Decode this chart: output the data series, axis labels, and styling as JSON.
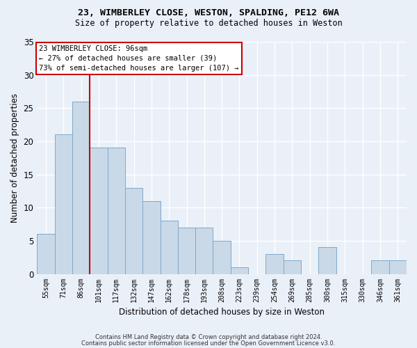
{
  "title1": "23, WIMBERLEY CLOSE, WESTON, SPALDING, PE12 6WA",
  "title2": "Size of property relative to detached houses in Weston",
  "xlabel": "Distribution of detached houses by size in Weston",
  "ylabel": "Number of detached properties",
  "footer1": "Contains HM Land Registry data © Crown copyright and database right 2024.",
  "footer2": "Contains public sector information licensed under the Open Government Licence v3.0.",
  "categories": [
    "55sqm",
    "71sqm",
    "86sqm",
    "101sqm",
    "117sqm",
    "132sqm",
    "147sqm",
    "162sqm",
    "178sqm",
    "193sqm",
    "208sqm",
    "223sqm",
    "239sqm",
    "254sqm",
    "269sqm",
    "285sqm",
    "300sqm",
    "315sqm",
    "330sqm",
    "346sqm",
    "361sqm"
  ],
  "values": [
    6,
    21,
    26,
    19,
    19,
    13,
    11,
    8,
    7,
    7,
    5,
    1,
    0,
    3,
    2,
    0,
    4,
    0,
    0,
    2,
    2
  ],
  "bar_color": "#c9d9e8",
  "bar_edge_color": "#7fa8c9",
  "background_color": "#eaf0f8",
  "grid_color": "#ffffff",
  "annotation_label": "23 WIMBERLEY CLOSE: 96sqm",
  "annotation_line1": "← 27% of detached houses are smaller (39)",
  "annotation_line2": "73% of semi-detached houses are larger (107) →",
  "annotation_box_color": "#ffffff",
  "annotation_box_edge": "#cc0000",
  "marker_line_color": "#cc0000",
  "marker_bar_index": 2,
  "ylim": [
    0,
    35
  ],
  "yticks": [
    0,
    5,
    10,
    15,
    20,
    25,
    30,
    35
  ]
}
